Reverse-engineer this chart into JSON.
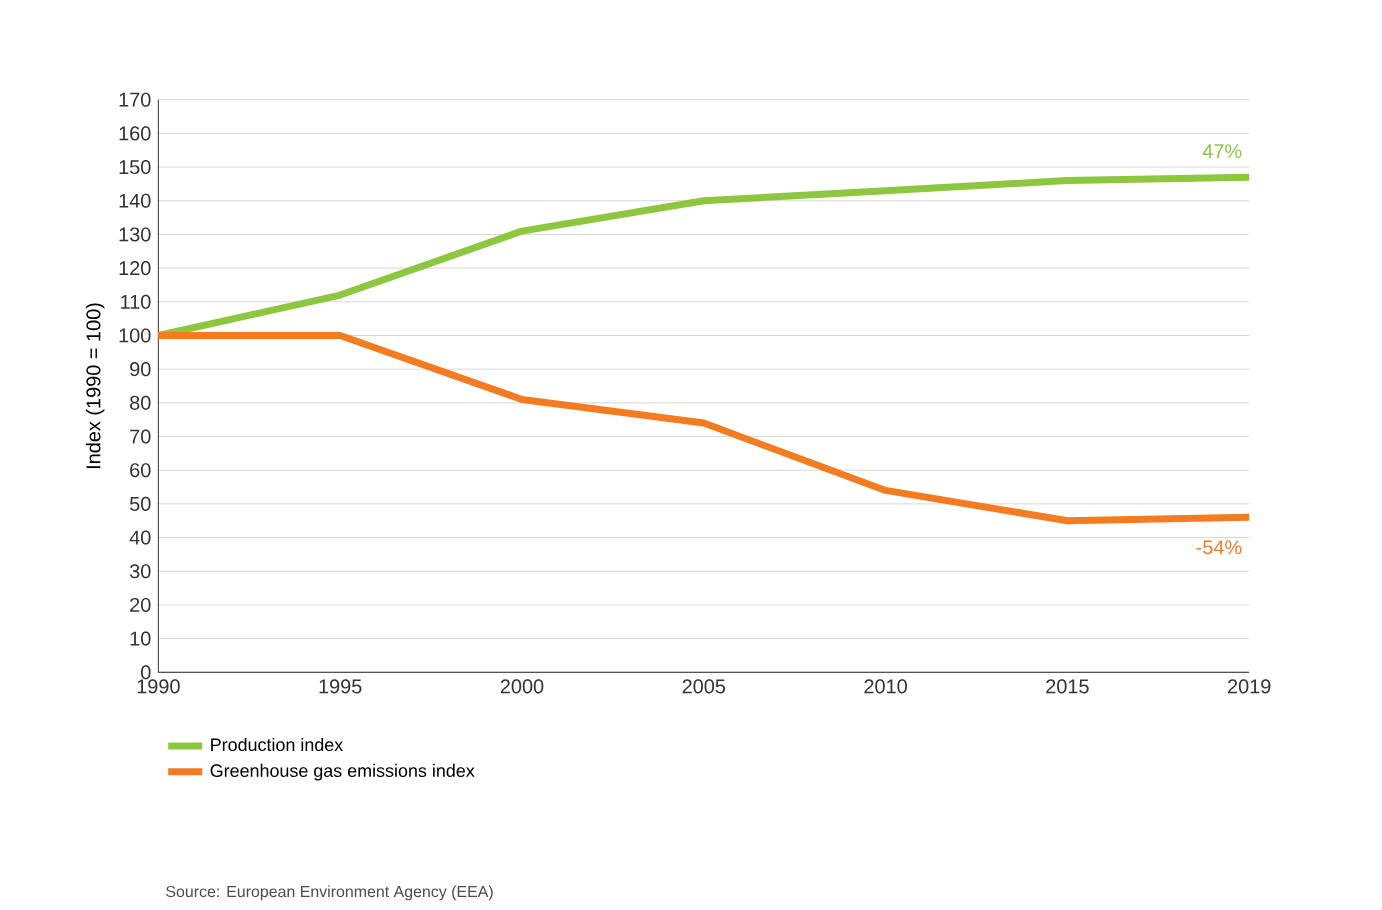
{
  "chart_data": {
    "type": "line",
    "ylabel": "Index (1990 = 100)",
    "categories": [
      "1990",
      "1995",
      "2000",
      "2005",
      "2010",
      "2015",
      "2019"
    ],
    "series": [
      {
        "name": "Production index",
        "color": "#8dc63f",
        "values": [
          100,
          112,
          131,
          140,
          143,
          146,
          147
        ]
      },
      {
        "name": "Greenhouse gas emissions index",
        "color": "#f47b20",
        "values": [
          100,
          100,
          81,
          74,
          54,
          45,
          46
        ]
      }
    ],
    "ylim": [
      0,
      170
    ],
    "yticks": [
      0,
      10,
      20,
      30,
      40,
      50,
      60,
      70,
      80,
      90,
      100,
      110,
      120,
      130,
      140,
      150,
      160,
      170
    ],
    "grid": "y",
    "legend": "bottom left",
    "line_style": "solid",
    "annotations": [
      {
        "text": "47%",
        "x": "2019",
        "y": 147
      },
      {
        "text": "-54%",
        "x": "2019",
        "y": 46
      },
      "Source: European Environment Agency (EEA)"
    ]
  }
}
